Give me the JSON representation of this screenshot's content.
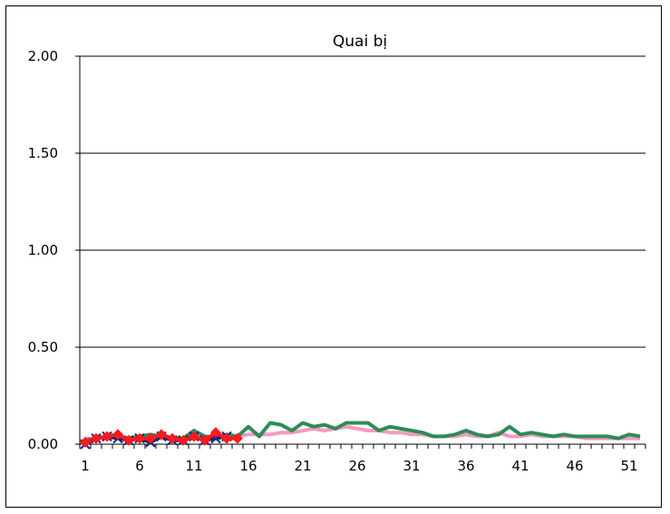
{
  "chart_data": {
    "type": "line",
    "title": "Quai bị",
    "xlabel": "",
    "ylabel": "",
    "ylim": [
      0,
      2
    ],
    "y_ticks": [
      "0.00",
      "0.50",
      "1.00",
      "1.50",
      "2.00"
    ],
    "x_ticks": [
      "1",
      "6",
      "11",
      "16",
      "21",
      "26",
      "31",
      "36",
      "41",
      "46",
      "51"
    ],
    "x_range": [
      1,
      52
    ],
    "grid": "horizontal",
    "legend": "none",
    "series": [
      {
        "color": "#f49ac1",
        "marker": "none",
        "x": [
          1,
          2,
          3,
          4,
          5,
          6,
          7,
          8,
          9,
          10,
          11,
          12,
          13,
          14,
          15,
          16,
          17,
          18,
          19,
          20,
          21,
          22,
          23,
          24,
          25,
          26,
          27,
          28,
          29,
          30,
          31,
          32,
          33,
          34,
          35,
          36,
          37,
          38,
          39,
          40,
          41,
          42,
          43,
          44,
          45,
          46,
          47,
          48,
          49,
          50,
          51,
          52
        ],
        "values": [
          0.03,
          0.03,
          0.03,
          0.04,
          0.03,
          0.03,
          0.03,
          0.03,
          0.03,
          0.03,
          0.04,
          0.04,
          0.04,
          0.05,
          0.04,
          0.05,
          0.05,
          0.05,
          0.06,
          0.06,
          0.07,
          0.08,
          0.07,
          0.08,
          0.09,
          0.08,
          0.07,
          0.07,
          0.06,
          0.06,
          0.05,
          0.05,
          0.04,
          0.04,
          0.04,
          0.05,
          0.04,
          0.04,
          0.06,
          0.04,
          0.04,
          0.05,
          0.04,
          0.04,
          0.04,
          0.04,
          0.03,
          0.03,
          0.03,
          0.03,
          0.03,
          0.03
        ]
      },
      {
        "color": "#2e8b57",
        "marker": "none",
        "x": [
          1,
          2,
          3,
          4,
          5,
          6,
          7,
          8,
          9,
          10,
          11,
          12,
          13,
          14,
          15,
          16,
          17,
          18,
          19,
          20,
          21,
          22,
          23,
          24,
          25,
          26,
          27,
          28,
          29,
          30,
          31,
          32,
          33,
          34,
          35,
          36,
          37,
          38,
          39,
          40,
          41,
          42,
          43,
          44,
          45,
          46,
          47,
          48,
          49,
          50,
          51,
          52
        ],
        "values": [
          0.02,
          0.03,
          0.04,
          0.04,
          0.03,
          0.04,
          0.05,
          0.04,
          0.03,
          0.03,
          0.07,
          0.04,
          0.03,
          0.05,
          0.04,
          0.09,
          0.04,
          0.11,
          0.1,
          0.07,
          0.11,
          0.09,
          0.1,
          0.08,
          0.11,
          0.11,
          0.11,
          0.07,
          0.09,
          0.08,
          0.07,
          0.06,
          0.04,
          0.04,
          0.05,
          0.07,
          0.05,
          0.04,
          0.05,
          0.09,
          0.05,
          0.06,
          0.05,
          0.04,
          0.05,
          0.04,
          0.04,
          0.04,
          0.04,
          0.03,
          0.05,
          0.04
        ]
      },
      {
        "color": "#1a237e",
        "marker": "x",
        "x": [
          1,
          2,
          3,
          4,
          5,
          6,
          7,
          8,
          9,
          10,
          11,
          12,
          13,
          14
        ],
        "values": [
          0.0,
          0.03,
          0.04,
          0.03,
          0.02,
          0.03,
          0.01,
          0.04,
          0.02,
          0.02,
          0.04,
          0.02,
          0.03,
          0.04
        ]
      },
      {
        "color": "#ff1a1a",
        "marker": "diamond",
        "x": [
          1,
          2,
          3,
          4,
          5,
          6,
          7,
          8,
          9,
          10,
          11,
          12,
          13,
          14,
          15
        ],
        "values": [
          0.01,
          0.03,
          0.04,
          0.05,
          0.02,
          0.03,
          0.03,
          0.05,
          0.03,
          0.02,
          0.04,
          0.02,
          0.06,
          0.03,
          0.03
        ]
      }
    ]
  }
}
